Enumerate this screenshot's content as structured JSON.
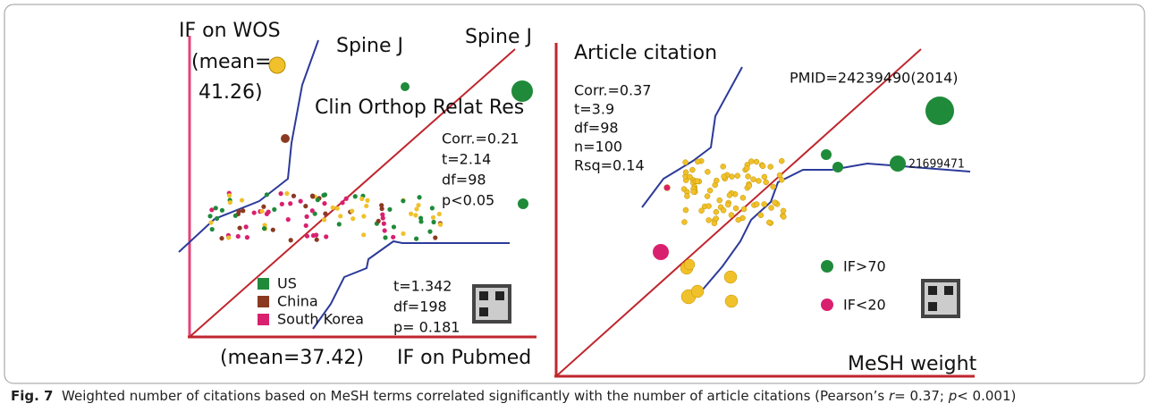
{
  "left_panel": {
    "y_label": "IF on WOS",
    "y_mean_1": "(mean=",
    "y_mean_2": "41.26)",
    "point_label_1": "Spine J",
    "point_label_2": "Spine J",
    "point_label_3": "Clin Orthop Relat Res",
    "stats": [
      "Corr.=0.21",
      "t=2.14",
      "df=98",
      "p<0.05"
    ],
    "legend": [
      "US",
      "China",
      "South Korea"
    ],
    "test": [
      "t=1.342",
      "df=198",
      "p= 0.181"
    ],
    "x_mean": "(mean=37.42)",
    "x_label": "IF on Pubmed"
  },
  "right_panel": {
    "y_label": "Article citation",
    "stats": [
      "Corr.=0.37",
      "t=3.9",
      "df=98",
      "n=100",
      "Rsq=0.14"
    ],
    "point_label_1": "PMID=24239490(2014)",
    "point_label_2": "21699471",
    "legend": [
      "IF>70",
      "IF<20"
    ],
    "x_label": "MeSH weight"
  },
  "caption": {
    "label": "Fig. 7",
    "text_1": "Weighted number of citations based on MeSH terms correlated significantly with the number of article citations (Pearson’s ",
    "r_symbol": "r",
    "text_2": "= 0.37; ",
    "p_symbol": "p",
    "text_3": "< 0.001)"
  }
}
